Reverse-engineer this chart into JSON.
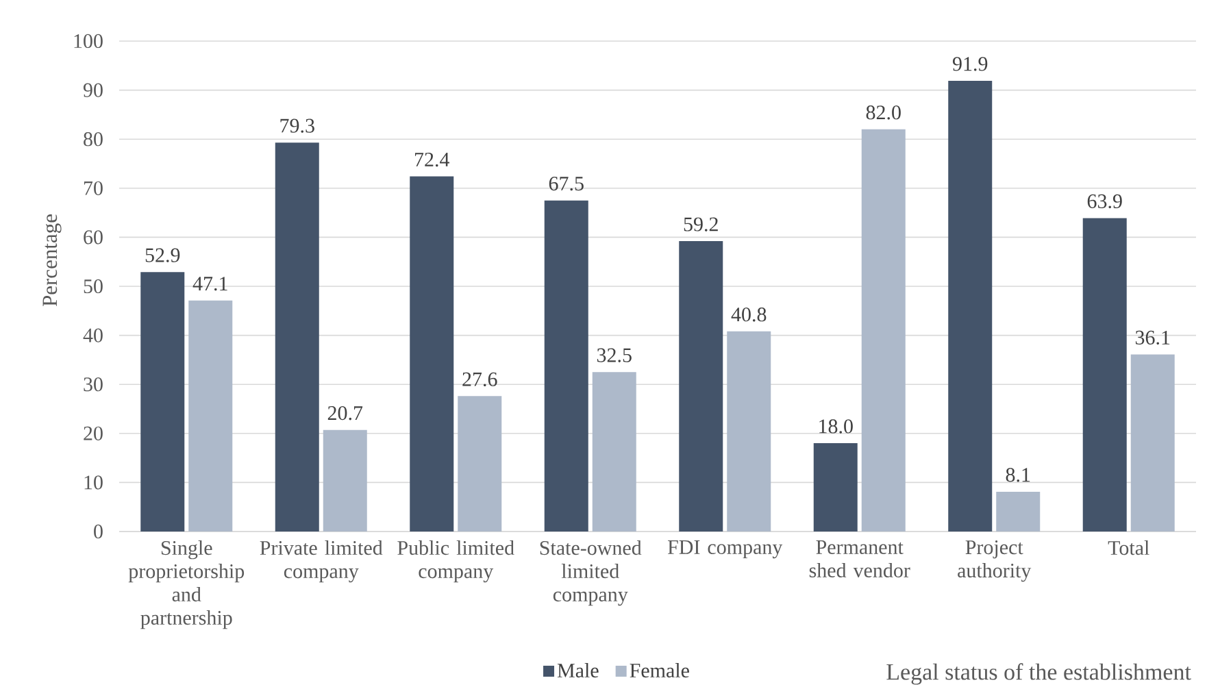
{
  "chart_data": {
    "type": "bar",
    "xlabel": "Legal status of the establishment",
    "ylabel": "Percentage",
    "categories": [
      "Single proprietorship and partnership",
      "Private limited company",
      "Public limited company",
      "State-owned limited company",
      "FDI company",
      "Permanent shed vendor",
      "Project authority",
      "Total"
    ],
    "series": [
      {
        "name": "Male",
        "color": "#44546a",
        "values": [
          52.9,
          79.3,
          72.4,
          67.5,
          59.2,
          18.0,
          91.9,
          63.9
        ],
        "value_labels": [
          "52.9",
          "79.3",
          "72.4",
          "67.5",
          "59.2",
          "18.0",
          "91.9",
          "63.9"
        ]
      },
      {
        "name": "Female",
        "color": "#adb9ca",
        "values": [
          47.1,
          20.7,
          27.6,
          32.5,
          40.8,
          82.0,
          8.1,
          36.1
        ],
        "value_labels": [
          "47.1",
          "20.7",
          "27.6",
          "32.5",
          "40.8",
          "82.0",
          "8.1",
          "36.1"
        ]
      }
    ],
    "ylim": [
      0,
      100
    ],
    "yticks": [
      0,
      10,
      20,
      30,
      40,
      50,
      60,
      70,
      80,
      90,
      100
    ],
    "grid": "y",
    "legend": "bottom"
  }
}
